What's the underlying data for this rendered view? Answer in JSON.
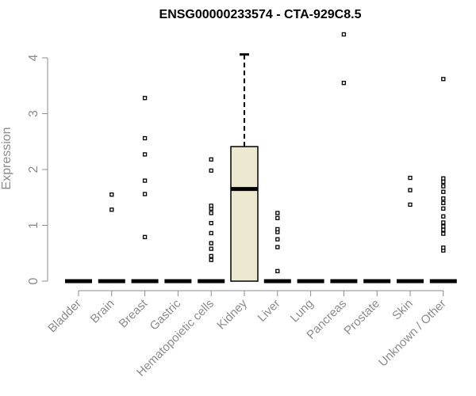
{
  "chart_data": {
    "type": "boxplot",
    "title": "ENSG00000233574 - CTA-929C8.5",
    "xlabel": "",
    "ylabel": "Expression",
    "ylim": [
      0,
      4.2
    ],
    "yticks": [
      0,
      1,
      2,
      3,
      4
    ],
    "categories": [
      "Bladder",
      "Brain",
      "Breast",
      "Gastric",
      "Hematopoietic cells",
      "Kidney",
      "Liver",
      "Lung",
      "Pancreas",
      "Prostate",
      "Skin",
      "Unknown / Other"
    ],
    "boxes": [
      {
        "category": "Bladder",
        "median": 0,
        "q1": 0,
        "q3": 0,
        "whisker_low": 0,
        "whisker_high": 0,
        "outliers": []
      },
      {
        "category": "Brain",
        "median": 0,
        "q1": 0,
        "q3": 0,
        "whisker_low": 0,
        "whisker_high": 0,
        "outliers": [
          1.28,
          1.55
        ]
      },
      {
        "category": "Breast",
        "median": 0,
        "q1": 0,
        "q3": 0,
        "whisker_low": 0,
        "whisker_high": 0,
        "outliers": [
          0.79,
          1.56,
          1.8,
          2.27,
          2.56,
          3.28
        ]
      },
      {
        "category": "Gastric",
        "median": 0,
        "q1": 0,
        "q3": 0,
        "whisker_low": 0,
        "whisker_high": 0,
        "outliers": []
      },
      {
        "category": "Hematopoietic cells",
        "median": 0,
        "q1": 0,
        "q3": 0,
        "whisker_low": 0,
        "whisker_high": 0,
        "outliers": [
          0.38,
          0.45,
          0.58,
          0.68,
          0.86,
          1.04,
          1.22,
          1.3,
          1.35,
          1.98,
          2.18
        ]
      },
      {
        "category": "Kidney",
        "median": 1.65,
        "q1": 0,
        "q3": 2.41,
        "whisker_low": 0,
        "whisker_high": 4.06,
        "outliers": [],
        "fill": "#ede8d0"
      },
      {
        "category": "Liver",
        "median": 0,
        "q1": 0,
        "q3": 0,
        "whisker_low": 0,
        "whisker_high": 0,
        "outliers": [
          0.18,
          0.61,
          0.75,
          0.88,
          0.93,
          1.13,
          1.22
        ]
      },
      {
        "category": "Lung",
        "median": 0,
        "q1": 0,
        "q3": 0,
        "whisker_low": 0,
        "whisker_high": 0,
        "outliers": []
      },
      {
        "category": "Pancreas",
        "median": 0,
        "q1": 0,
        "q3": 0,
        "whisker_low": 0,
        "whisker_high": 0,
        "outliers": [
          3.55,
          4.42
        ]
      },
      {
        "category": "Prostate",
        "median": 0,
        "q1": 0,
        "q3": 0,
        "whisker_low": 0,
        "whisker_high": 0,
        "outliers": []
      },
      {
        "category": "Skin",
        "median": 0,
        "q1": 0,
        "q3": 0,
        "whisker_low": 0,
        "whisker_high": 0,
        "outliers": [
          1.37,
          1.63,
          1.85
        ]
      },
      {
        "category": "Unknown / Other",
        "median": 0,
        "q1": 0,
        "q3": 0,
        "whisker_low": 0,
        "whisker_high": 0,
        "outliers": [
          0.55,
          0.6,
          0.85,
          0.92,
          0.98,
          1.05,
          1.16,
          1.3,
          1.4,
          1.48,
          1.6,
          1.7,
          1.78,
          1.84,
          3.62
        ]
      }
    ],
    "colors": {
      "axis": "#8c8c8c",
      "box_fill": "#ede8d0",
      "box_stroke": "#000000",
      "title": "#000000"
    }
  }
}
